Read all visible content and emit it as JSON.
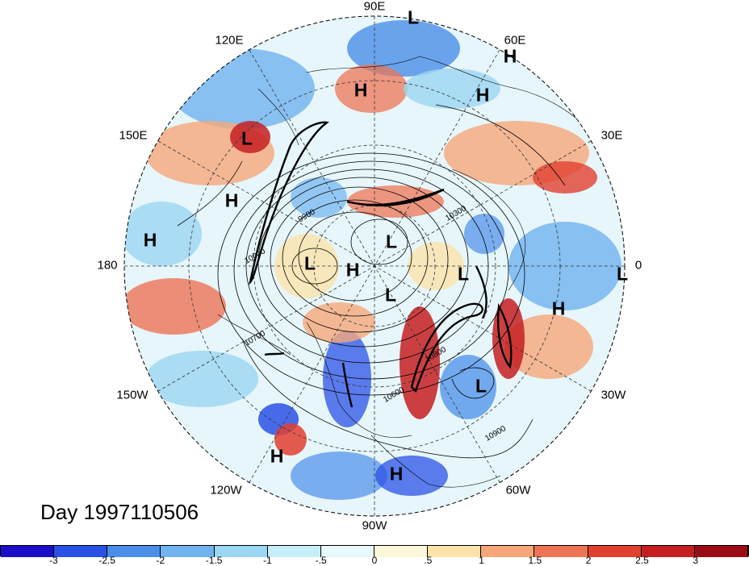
{
  "title": "Day 1997110506",
  "longitude_labels": {
    "lon_90E": "90E",
    "lon_60E": "60E",
    "lon_120E": "120E",
    "lon_30E": "30E",
    "lon_150E": "150E",
    "lon_0": "0",
    "lon_180": "180",
    "lon_30W": "30W",
    "lon_150W": "150W",
    "lon_60W": "60W",
    "lon_120W": "120W",
    "lon_90W": "90W"
  },
  "pressure_centers": [
    {
      "type": "L"
    },
    {
      "type": "H"
    },
    {
      "type": "H"
    },
    {
      "type": "H"
    },
    {
      "type": "L"
    },
    {
      "type": "H"
    },
    {
      "type": "H"
    },
    {
      "type": "L"
    },
    {
      "type": "L"
    },
    {
      "type": "H"
    },
    {
      "type": "L"
    },
    {
      "type": "L"
    },
    {
      "type": "L"
    },
    {
      "type": "H"
    },
    {
      "type": "L"
    },
    {
      "type": "H"
    },
    {
      "type": "H"
    }
  ],
  "contour_labels": [
    "9900",
    "10300",
    "10000",
    "10700",
    "10800",
    "10600",
    "10900"
  ],
  "colorbar": {
    "colors": [
      "#1a0ec8",
      "#2a51e6",
      "#4a8fe9",
      "#6fb3ef",
      "#9bd6f3",
      "#c6eef8",
      "#e8f8fb",
      "#fdf7d9",
      "#fbe3aa",
      "#f6a77a",
      "#ee7456",
      "#e2402f",
      "#c51f21",
      "#9b0b16"
    ],
    "ticks": [
      "-3",
      "-2.5",
      "-2",
      "-1.5",
      "-1",
      "-.5",
      "0",
      ".5",
      "1",
      "1.5",
      "2",
      "2.5",
      "3"
    ]
  }
}
